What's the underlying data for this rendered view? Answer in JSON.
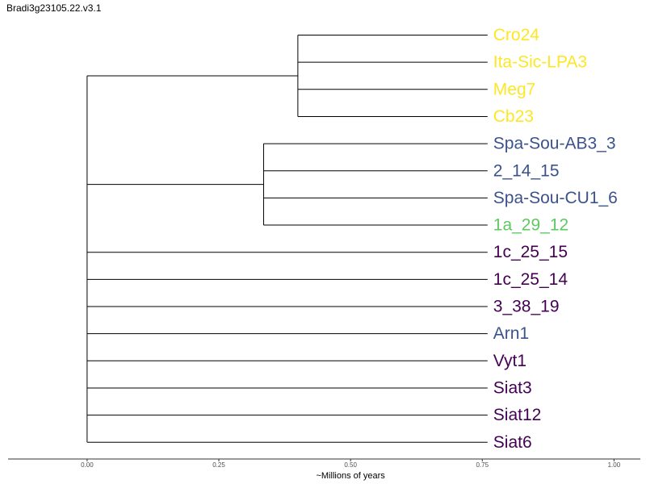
{
  "title": "Bradi3g23105.22.v3.1",
  "tree": {
    "axis": {
      "label": "~Millions of years",
      "xlim": [
        -0.15,
        1.05
      ],
      "ticks": [
        0.0,
        0.25,
        0.5,
        0.75,
        1.0
      ],
      "tick_labels": [
        "0.00",
        "0.25",
        "0.50",
        "0.75",
        "1.00"
      ]
    },
    "tip_x": 0.76,
    "colors": {
      "yellow": "#fde725",
      "blue": "#3b528b",
      "green": "#5ec962",
      "purple": "#440154"
    },
    "tips": [
      {
        "label": "Cro24",
        "color": "#fde725"
      },
      {
        "label": "Ita-Sic-LPA3",
        "color": "#fde725"
      },
      {
        "label": "Meg7",
        "color": "#fde725"
      },
      {
        "label": "Cb23",
        "color": "#fde725"
      },
      {
        "label": "Spa-Sou-AB3_3",
        "color": "#3b528b"
      },
      {
        "label": "2_14_15",
        "color": "#3b528b"
      },
      {
        "label": "Spa-Sou-CU1_6",
        "color": "#3b528b"
      },
      {
        "label": "1a_29_12",
        "color": "#5ec962"
      },
      {
        "label": "1c_25_15",
        "color": "#440154"
      },
      {
        "label": "1c_25_14",
        "color": "#440154"
      },
      {
        "label": "3_38_19",
        "color": "#440154"
      },
      {
        "label": "Arn1",
        "color": "#3b528b"
      },
      {
        "label": "Vyt1",
        "color": "#440154"
      },
      {
        "label": "Siat3",
        "color": "#440154"
      },
      {
        "label": "Siat12",
        "color": "#440154"
      },
      {
        "label": "Siat6",
        "color": "#440154"
      }
    ],
    "clades": [
      {
        "node_x": 0.4,
        "tips": [
          0,
          1,
          2,
          3
        ]
      },
      {
        "node_x": 0.335,
        "tips": [
          4,
          5,
          6,
          7
        ]
      }
    ],
    "root_x": 0.0
  }
}
